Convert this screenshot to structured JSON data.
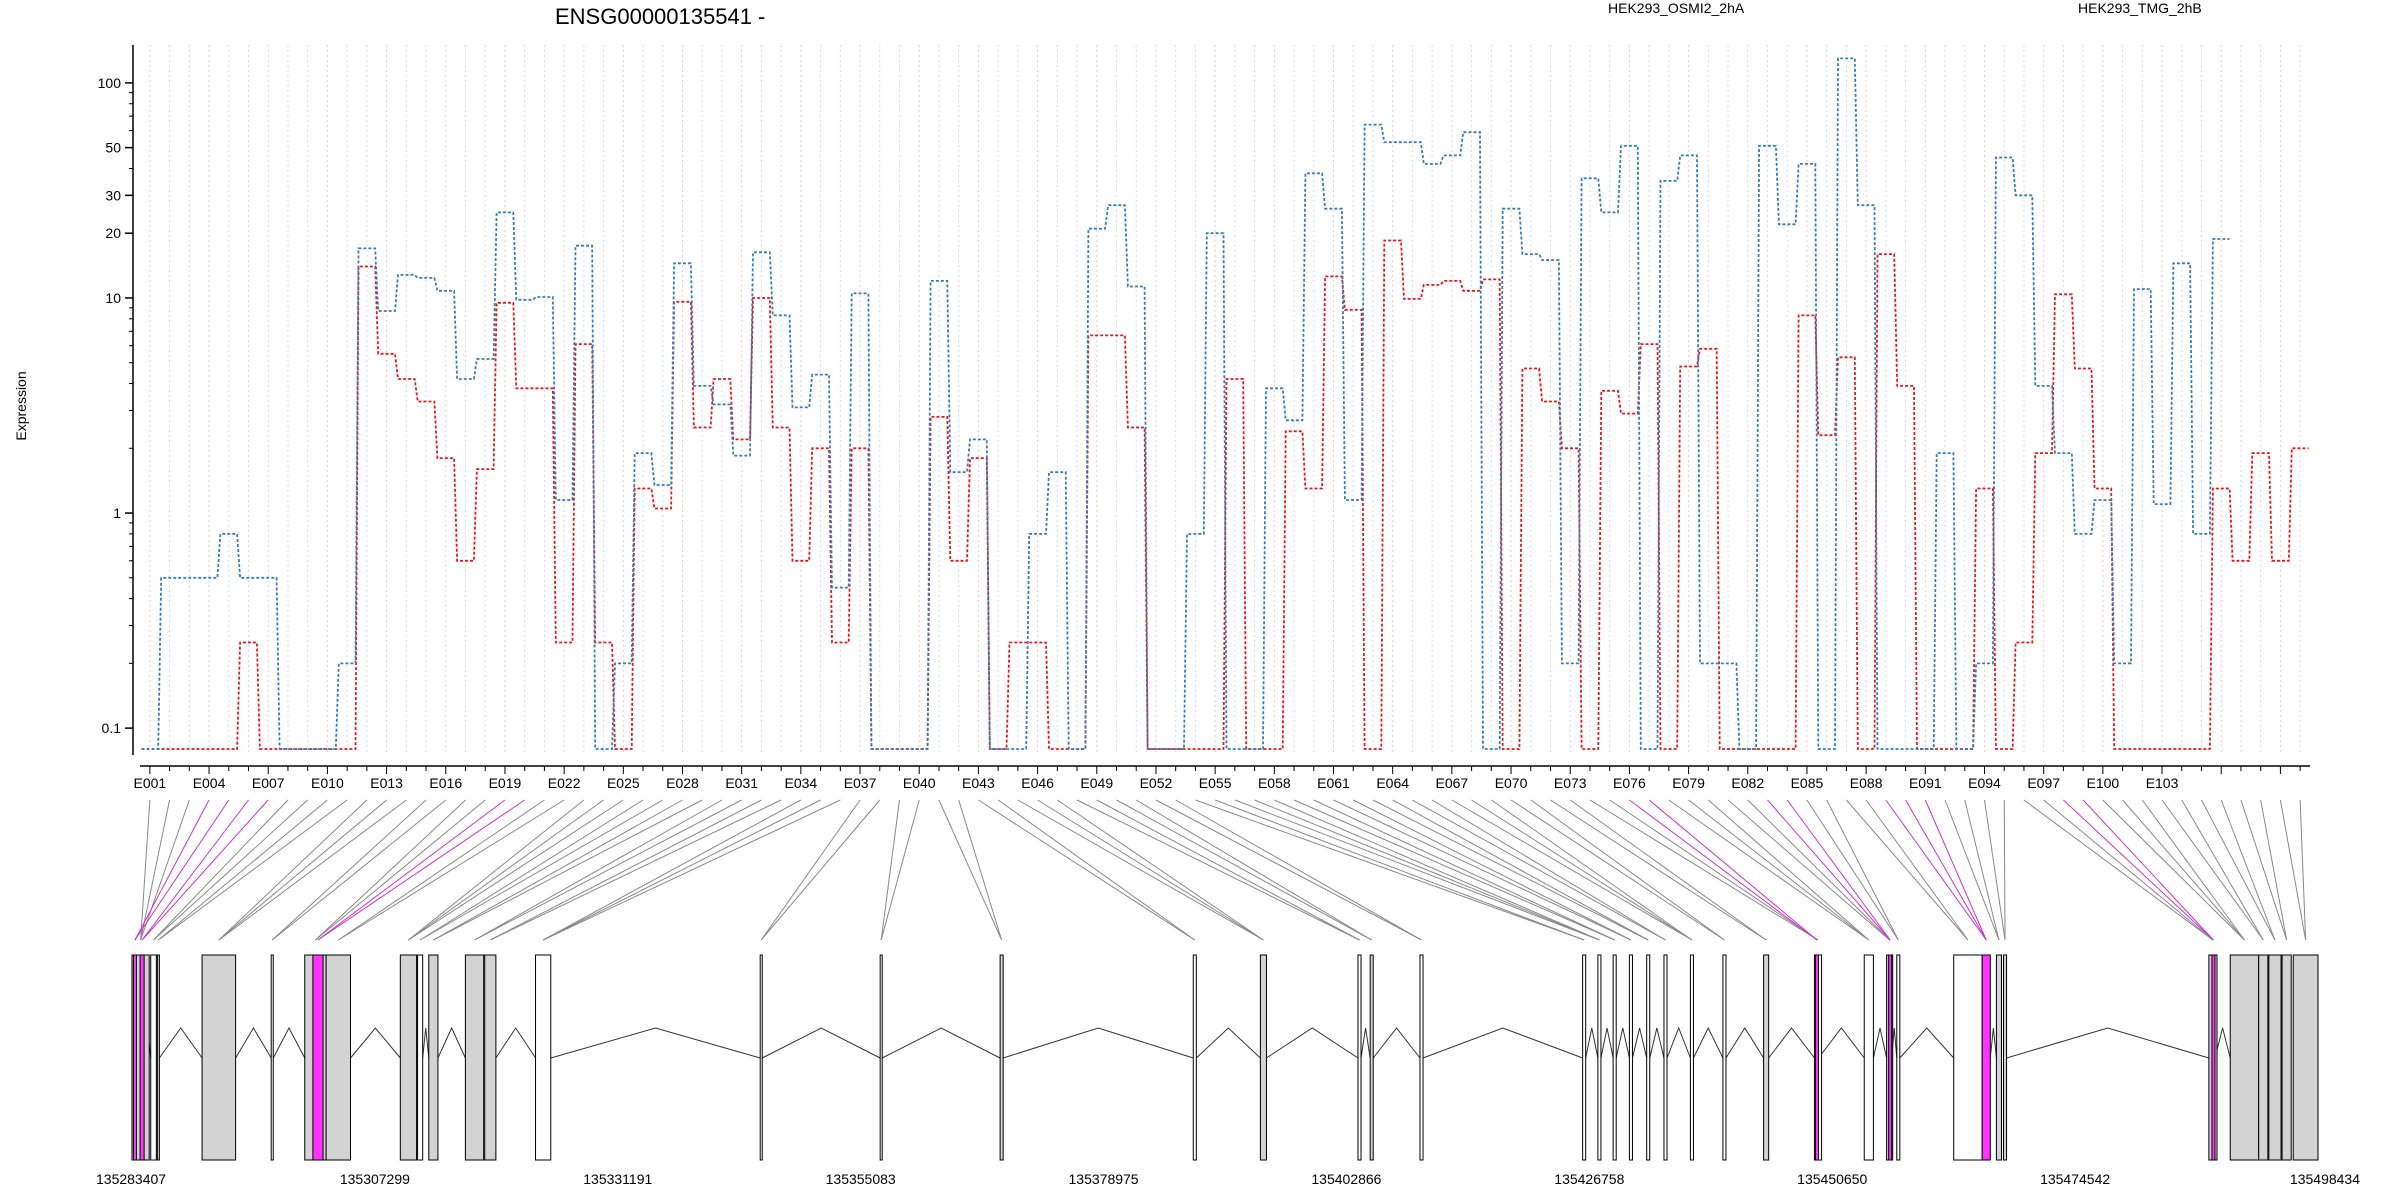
{
  "title": "ENSG00000135541 -",
  "colors": {
    "s1": "#e41a1c",
    "s2": "#377eb8",
    "exon": "#d3d3d3",
    "special": "#ff33ff",
    "connector": "#555555",
    "connector_special": "#cc33cc",
    "axis": "#000000"
  },
  "chart_data": {
    "type": "line",
    "ylabel": "Expression",
    "yscale": "log",
    "yticks": [
      0.1,
      1,
      10,
      20,
      30,
      50,
      100
    ],
    "ytick_labels": [
      "0.1",
      "1",
      "10",
      "20",
      "30",
      "50",
      "100"
    ],
    "ylim": [
      0.075,
      150
    ],
    "series": [
      {
        "name": "HEK293_OSMI2_2hA",
        "color": "#e41a1c",
        "values": [
          0.08,
          0.08,
          0.08,
          0.08,
          0.08,
          0.25,
          0.08,
          0.08,
          0.08,
          0.08,
          0.08,
          14,
          5.5,
          4.2,
          3.3,
          1.8,
          0.6,
          1.6,
          9.5,
          3.8,
          3.8,
          0.25,
          6.1,
          0.25,
          0.08,
          1.3,
          1.05,
          9.6,
          2.5,
          4.2,
          2.2,
          10,
          2.5,
          0.6,
          2,
          0.25,
          2,
          0.08,
          0.08,
          0.08,
          2.8,
          0.6,
          1.8,
          0.08,
          0.25,
          0.25,
          0.08,
          0.08,
          6.7,
          6.7,
          2.5,
          0.08,
          0.08,
          0.08,
          0.08,
          4.2,
          0.08,
          0.08,
          2.4,
          1.3,
          12.6,
          8.8,
          0.08,
          18.5,
          9.9,
          11.5,
          12,
          10.8,
          12.2,
          0.08,
          4.7,
          3.3,
          2,
          0.08,
          3.7,
          2.9,
          6.1,
          0.08,
          4.8,
          5.8,
          0.08,
          0.08,
          0.08,
          0.08,
          8.3,
          2.3,
          5.3,
          0.08,
          16,
          3.9,
          0.08,
          0.08,
          0.08,
          1.3,
          0.08,
          0.25,
          1.9,
          10.4,
          4.7,
          1.3,
          0.08,
          0.08,
          0.08,
          0.08,
          0.08,
          1.3,
          0.6,
          1.9,
          0.6,
          2
        ]
      },
      {
        "name": "HEK293_TMG_2hB",
        "color": "#377eb8",
        "values": [
          0.08,
          0.5,
          0.5,
          0.5,
          0.8,
          0.5,
          0.5,
          0.08,
          0.08,
          0.08,
          0.2,
          17,
          8.7,
          12.8,
          12.4,
          10.8,
          4.2,
          5.2,
          25,
          9.8,
          10.1,
          1.15,
          17.5,
          0.08,
          0.2,
          1.9,
          1.35,
          14.5,
          3.9,
          3.2,
          1.85,
          16.3,
          8.3,
          3.1,
          4.4,
          0.45,
          10.5,
          0.08,
          0.08,
          0.08,
          12,
          1.55,
          2.2,
          0.08,
          0.08,
          0.8,
          1.55,
          0.08,
          21,
          27,
          11.3,
          0.08,
          0.08,
          0.8,
          20,
          0.08,
          0.08,
          3.8,
          2.7,
          38,
          26,
          1.15,
          64,
          53,
          53,
          42,
          46,
          59,
          0.08,
          26,
          16,
          15,
          0.2,
          36,
          25,
          51,
          0.08,
          35,
          46,
          0.2,
          0.2,
          0.08,
          51,
          22,
          42,
          0.08,
          130,
          27,
          0.08,
          0.08,
          0.08,
          1.9,
          0.08,
          0.2,
          45,
          30,
          3.9,
          1.9,
          0.8,
          1.15,
          0.2,
          11,
          1.1,
          14.5,
          0.8,
          18.8
        ]
      }
    ],
    "exon_labels": [
      "E001",
      "E004",
      "E007",
      "E010",
      "E013",
      "E016",
      "E019",
      "E022",
      "E025",
      "E028",
      "E031",
      "E034",
      "E037",
      "E040",
      "E043",
      "E046",
      "E049",
      "E052",
      "E055",
      "E058",
      "E061",
      "E064",
      "E067",
      "E070",
      "E073",
      "E076",
      "E079",
      "E082",
      "E085",
      "E088",
      "E091",
      "E094",
      "E097",
      "E100",
      "E103"
    ],
    "gene_axis": {
      "range": [
        135283407,
        135498434
      ],
      "ticks": [
        135283407,
        135307299,
        135331191,
        135355083,
        135378975,
        135402866,
        135426758,
        135450650,
        135474542,
        135498434
      ],
      "tick_labels": [
        "135283407",
        "135307299",
        "135331191",
        "135355083",
        "135378975",
        "135402866",
        "135426758",
        "135450650",
        "135474542",
        "135498434"
      ]
    },
    "exon_boxes": [
      {
        "s": 135283407,
        "e": 135285100,
        "fill": "#d3d3d3"
      },
      {
        "s": 135283550,
        "e": 135283850,
        "fill": "#ff33ff"
      },
      {
        "s": 135284200,
        "e": 135284600,
        "fill": "#ff33ff"
      },
      {
        "s": 135285250,
        "e": 135285800,
        "fill": "#ffffff"
      },
      {
        "s": 135285900,
        "e": 135286100,
        "fill": "#d3d3d3"
      },
      {
        "s": 135290300,
        "e": 135293600,
        "fill": "#d3d3d3"
      },
      {
        "s": 135297100,
        "e": 135297300,
        "fill": "#ffffff"
      },
      {
        "s": 135300400,
        "e": 135302500,
        "fill": "#d3d3d3"
      },
      {
        "s": 135301200,
        "e": 135302200,
        "fill": "#ff33ff"
      },
      {
        "s": 135302500,
        "e": 135304900,
        "fill": "#d3d3d3"
      },
      {
        "s": 135309800,
        "e": 135311400,
        "fill": "#d3d3d3"
      },
      {
        "s": 135311500,
        "e": 135312000,
        "fill": "#ffffff"
      },
      {
        "s": 135312600,
        "e": 135313500,
        "fill": "#d3d3d3"
      },
      {
        "s": 135316200,
        "e": 135318000,
        "fill": "#d3d3d3"
      },
      {
        "s": 135318100,
        "e": 135319200,
        "fill": "#d3d3d3"
      },
      {
        "s": 135323100,
        "e": 135324600,
        "fill": "#ffffff"
      },
      {
        "s": 135345200,
        "e": 135345400,
        "fill": "#ffffff"
      },
      {
        "s": 135357000,
        "e": 135357200,
        "fill": "#ffffff"
      },
      {
        "s": 135368800,
        "e": 135369100,
        "fill": "#d3d3d3"
      },
      {
        "s": 135387800,
        "e": 135388100,
        "fill": "#ffffff"
      },
      {
        "s": 135394400,
        "e": 135395000,
        "fill": "#d3d3d3"
      },
      {
        "s": 135404000,
        "e": 135404300,
        "fill": "#ffffff"
      },
      {
        "s": 135405200,
        "e": 135405500,
        "fill": "#d3d3d3"
      },
      {
        "s": 135410100,
        "e": 135410400,
        "fill": "#ffffff"
      },
      {
        "s": 135426100,
        "e": 135426400,
        "fill": "#ffffff"
      },
      {
        "s": 135427600,
        "e": 135427900,
        "fill": "#ffffff"
      },
      {
        "s": 135429100,
        "e": 135429400,
        "fill": "#ffffff"
      },
      {
        "s": 135430700,
        "e": 135431000,
        "fill": "#ffffff"
      },
      {
        "s": 135432400,
        "e": 135432700,
        "fill": "#ffffff"
      },
      {
        "s": 135434100,
        "e": 135434400,
        "fill": "#ffffff"
      },
      {
        "s": 135436700,
        "e": 135437000,
        "fill": "#ffffff"
      },
      {
        "s": 135439900,
        "e": 135440200,
        "fill": "#ffffff"
      },
      {
        "s": 135443900,
        "e": 135444400,
        "fill": "#d3d3d3"
      },
      {
        "s": 135448900,
        "e": 135449600,
        "fill": "#ffffff"
      },
      {
        "s": 135449000,
        "e": 135449300,
        "fill": "#ff33ff"
      },
      {
        "s": 135453800,
        "e": 135454700,
        "fill": "#ffffff"
      },
      {
        "s": 135456000,
        "e": 135456600,
        "fill": "#d3d3d3"
      },
      {
        "s": 135456200,
        "e": 135456500,
        "fill": "#ff33ff"
      },
      {
        "s": 135457000,
        "e": 135457300,
        "fill": "#ffffff"
      },
      {
        "s": 135462600,
        "e": 135465400,
        "fill": "#ffffff"
      },
      {
        "s": 135465400,
        "e": 135466200,
        "fill": "#ff33ff"
      },
      {
        "s": 135466800,
        "e": 135467300,
        "fill": "#d3d3d3"
      },
      {
        "s": 135467500,
        "e": 135467800,
        "fill": "#d3d3d3"
      },
      {
        "s": 135487700,
        "e": 135488500,
        "fill": "#d3d3d3"
      },
      {
        "s": 135488000,
        "e": 135488300,
        "fill": "#ff33ff"
      },
      {
        "s": 135489800,
        "e": 135492600,
        "fill": "#d3d3d3"
      },
      {
        "s": 135492600,
        "e": 135493500,
        "fill": "#d3d3d3"
      },
      {
        "s": 135493600,
        "e": 135494800,
        "fill": "#d3d3d3"
      },
      {
        "s": 135494900,
        "e": 135495800,
        "fill": "#d3d3d3"
      },
      {
        "s": 135496000,
        "e": 135498434,
        "fill": "#d3d3d3"
      }
    ]
  }
}
